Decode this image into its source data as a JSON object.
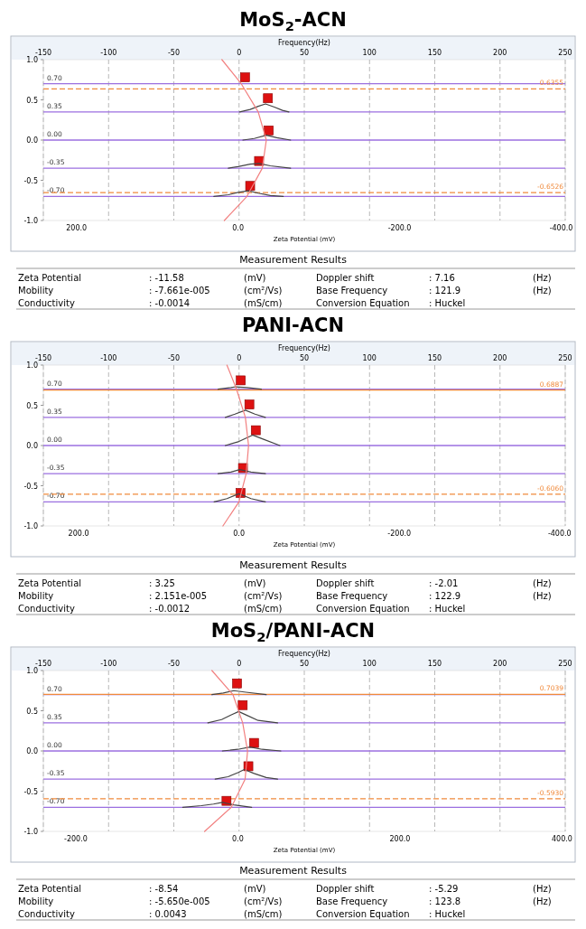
{
  "chart_data": [
    {
      "type": "scatter",
      "title": "MoS$_{2}$-ACN",
      "xlabel": "Zeta Potential (mV)",
      "x2label": "Frequency(Hz)",
      "xlim": [
        241,
        -405
      ],
      "xticks": [
        {
          "value": 200,
          "label": "200.0"
        },
        {
          "value": 0,
          "label": "0.0"
        },
        {
          "value": -200,
          "label": "-200.0"
        },
        {
          "value": -400,
          "label": "-400.0"
        }
      ],
      "x2lim": [
        -150,
        250
      ],
      "x2ticks": [
        -150,
        -100,
        -50,
        0,
        50,
        100,
        150,
        200,
        250
      ],
      "ylim": [
        -1,
        1
      ],
      "yticks": [
        {
          "value": 1,
          "label": "1.0"
        },
        {
          "value": 0.5,
          "label": "0.5"
        },
        {
          "value": 0,
          "label": "0.0"
        },
        {
          "value": -0.5,
          "label": "-0.5"
        },
        {
          "value": -1,
          "label": "-1.0"
        }
      ],
      "grid": "x",
      "series": [
        {
          "type": "line",
          "color": "#444444",
          "x": [
            -2,
            -15,
            -25,
            -34,
            -45,
            -55,
            -63
          ],
          "values": [
            0.35,
            0.38,
            0.42,
            0.45,
            0.41,
            0.37,
            0.35
          ]
        },
        {
          "type": "line",
          "color": "#444444",
          "x": [
            -6,
            -20,
            -35,
            -48,
            -65
          ],
          "values": [
            0,
            0.02,
            0.06,
            0.03,
            0
          ]
        },
        {
          "type": "line",
          "color": "#444444",
          "x": [
            12,
            0,
            -15,
            -26,
            -40,
            -65
          ],
          "values": [
            -0.35,
            -0.33,
            -0.3,
            -0.29,
            -0.32,
            -0.35
          ]
        },
        {
          "type": "line",
          "color": "#444444",
          "x": [
            30,
            12,
            0,
            -13,
            -25,
            -40,
            -56
          ],
          "values": [
            -0.7,
            -0.68,
            -0.65,
            -0.63,
            -0.66,
            -0.69,
            -0.7
          ]
        },
        {
          "type": "line",
          "color": "#f28080",
          "x": [
            20,
            -4,
            -25,
            -35,
            -30,
            -11,
            17
          ],
          "values": [
            1,
            0.7,
            0.35,
            0,
            -0.35,
            -0.7,
            -1
          ]
        },
        {
          "marker": "square",
          "color": "#dd1111",
          "x": [
            -8.6,
            -37,
            -38,
            -26,
            -15
          ],
          "values": [
            0.78,
            0.52,
            0.12,
            -0.26,
            -0.57
          ]
        }
      ],
      "ref_lines": [
        {
          "axis": "y",
          "value": 0.7,
          "label": "0.70",
          "color": "#9b6fe0"
        },
        {
          "axis": "y",
          "value": 0.35,
          "label": "0.35",
          "color": "#9b6fe0"
        },
        {
          "axis": "y",
          "value": 0,
          "label": "0.00",
          "color": "#9b6fe0"
        },
        {
          "axis": "y",
          "value": -0.35,
          "label": "-0.35",
          "color": "#9b6fe0"
        },
        {
          "axis": "y",
          "value": -0.7,
          "label": "-0.70",
          "color": "#9b6fe0"
        },
        {
          "axis": "y",
          "value": 0.6355,
          "label": "0.6355",
          "color": "#f08a3c",
          "line_style": "dashed"
        },
        {
          "axis": "y",
          "value": -0.6526,
          "label": "-0.6526",
          "color": "#f08a3c",
          "line_style": "dashed"
        }
      ],
      "annotations": [
        "Measurement Results",
        "Zeta Potential\t: -11.58\t(mV)",
        "Doppler shift\t: 7.16\t(Hz)",
        "Mobility\t: -7.661e-005\t(cm²/Vs)",
        "Base Frequency\t: 121.9\t(Hz)",
        "Conductivity\t: -0.0014\t(mS/cm)",
        "Conversion Equation\t: Huckel"
      ]
    },
    {
      "type": "scatter",
      "title": "PANI-ACN",
      "xlabel": "Zeta Potential (mV)",
      "x2label": "Frequency(Hz)",
      "xlim": [
        244,
        -407
      ],
      "xticks": [
        {
          "value": 200,
          "label": "200.0"
        },
        {
          "value": 0,
          "label": "0.0"
        },
        {
          "value": -200,
          "label": "-200.0"
        },
        {
          "value": -400,
          "label": "-400.0"
        }
      ],
      "x2lim": [
        -150,
        250
      ],
      "x2ticks": [
        -150,
        -100,
        -50,
        0,
        50,
        100,
        150,
        200,
        250
      ],
      "ylim": [
        -1,
        1
      ],
      "yticks": [
        {
          "value": 1,
          "label": "1.0"
        },
        {
          "value": 0.5,
          "label": "0.5"
        },
        {
          "value": 0,
          "label": "0.0"
        },
        {
          "value": -0.5,
          "label": "-0.5"
        },
        {
          "value": -1,
          "label": "-1.0"
        }
      ],
      "grid": "x",
      "series": [
        {
          "type": "line",
          "color": "#444444",
          "x": [
            26,
            10,
            4,
            -10,
            -28
          ],
          "values": [
            0.7,
            0.72,
            0.73,
            0.72,
            0.7
          ]
        },
        {
          "type": "line",
          "color": "#444444",
          "x": [
            17,
            5,
            -8,
            -20,
            -33
          ],
          "values": [
            0.35,
            0.39,
            0.44,
            0.39,
            0.35
          ]
        },
        {
          "type": "line",
          "color": "#444444",
          "x": [
            17,
            0,
            -17,
            -30,
            -51
          ],
          "values": [
            0,
            0.05,
            0.13,
            0.08,
            0
          ]
        },
        {
          "type": "line",
          "color": "#444444",
          "x": [
            26,
            10,
            -1,
            -15,
            -33
          ],
          "values": [
            -0.35,
            -0.33,
            -0.3,
            -0.33,
            -0.35
          ]
        },
        {
          "type": "line",
          "color": "#444444",
          "x": [
            31,
            15,
            0,
            -15,
            -33
          ],
          "values": [
            -0.7,
            -0.66,
            -0.6,
            -0.66,
            -0.7
          ]
        },
        {
          "type": "line",
          "color": "#f28080",
          "x": [
            15,
            3,
            -8,
            -12,
            -9,
            0,
            20
          ],
          "values": [
            1,
            0.7,
            0.35,
            0,
            -0.35,
            -0.7,
            -1
          ]
        },
        {
          "marker": "square",
          "color": "#dd1111",
          "x": [
            -2.3,
            -13,
            -21,
            -5,
            -2
          ],
          "values": [
            0.81,
            0.51,
            0.19,
            -0.28,
            -0.59
          ]
        }
      ],
      "ref_lines": [
        {
          "axis": "y",
          "value": 0.7,
          "label": "0.70",
          "color": "#9b6fe0"
        },
        {
          "axis": "y",
          "value": 0.35,
          "label": "0.35",
          "color": "#9b6fe0"
        },
        {
          "axis": "y",
          "value": 0,
          "label": "0.00",
          "color": "#9b6fe0"
        },
        {
          "axis": "y",
          "value": -0.35,
          "label": "-0.35",
          "color": "#9b6fe0"
        },
        {
          "axis": "y",
          "value": -0.7,
          "label": "-0.70",
          "color": "#9b6fe0"
        },
        {
          "axis": "y",
          "value": 0.6887,
          "label": "0.6887",
          "color": "#f08a3c",
          "line_style": "solid"
        },
        {
          "axis": "y",
          "value": -0.606,
          "label": "-0.6060",
          "color": "#f08a3c",
          "line_style": "dashed"
        }
      ],
      "annotations": [
        "Measurement Results",
        "Zeta Potential\t: 3.25\t(mV)",
        "Doppler shift\t: -2.01\t(Hz)",
        "Mobility\t: 2.151e-005\t(cm²/Vs)",
        "Base Frequency\t: 122.9\t(Hz)",
        "Conductivity\t: -0.0012\t(mS/cm)",
        "Conversion Equation\t: Huckel"
      ]
    },
    {
      "type": "scatter",
      "title": "MoS$_{2}$/PANI-ACN",
      "xlabel": "Zeta Potential (mV)",
      "x2label": "Frequency(Hz)",
      "xlim": [
        -240,
        404
      ],
      "xticks": [
        {
          "value": -200,
          "label": "-200.0"
        },
        {
          "value": 0,
          "label": "0.0"
        },
        {
          "value": 200,
          "label": "200.0"
        },
        {
          "value": 400,
          "label": "400.0"
        }
      ],
      "x2lim": [
        -150,
        250
      ],
      "x2ticks": [
        -150,
        -100,
        -50,
        0,
        50,
        100,
        150,
        200,
        250
      ],
      "ylim": [
        -1,
        1
      ],
      "yticks": [
        {
          "value": 1,
          "label": "1.0"
        },
        {
          "value": 0.5,
          "label": "0.5"
        },
        {
          "value": 0,
          "label": "0.0"
        },
        {
          "value": -0.5,
          "label": "-0.5"
        },
        {
          "value": -1,
          "label": "-1.0"
        }
      ],
      "grid": "x",
      "series": [
        {
          "type": "line",
          "color": "#444444",
          "x": [
            -32,
            -18,
            -5,
            10,
            35
          ],
          "values": [
            0.7,
            0.72,
            0.75,
            0.73,
            0.7
          ]
        },
        {
          "type": "line",
          "color": "#444444",
          "x": [
            -37,
            -20,
            -8,
            1,
            12,
            25,
            49
          ],
          "values": [
            0.35,
            0.39,
            0.45,
            0.49,
            0.44,
            0.38,
            0.35
          ]
        },
        {
          "type": "line",
          "color": "#444444",
          "x": [
            -19,
            0,
            15,
            30,
            53
          ],
          "values": [
            0,
            0.02,
            0.05,
            0.02,
            0
          ]
        },
        {
          "type": "line",
          "color": "#444444",
          "x": [
            -28,
            -12,
            0,
            8,
            20,
            35,
            49
          ],
          "values": [
            -0.35,
            -0.32,
            -0.27,
            -0.23,
            -0.28,
            -0.33,
            -0.35
          ]
        },
        {
          "type": "line",
          "color": "#444444",
          "x": [
            -68,
            -45,
            -30,
            -19,
            -5,
            17
          ],
          "values": [
            -0.7,
            -0.68,
            -0.66,
            -0.64,
            -0.67,
            -0.7
          ]
        },
        {
          "type": "line",
          "color": "#f28080",
          "x": [
            -32,
            -6,
            6,
            12,
            9,
            -8,
            -41
          ],
          "values": [
            1,
            0.7,
            0.35,
            0,
            -0.35,
            -0.7,
            -1
          ]
        },
        {
          "marker": "square",
          "color": "#dd1111",
          "x": [
            -1,
            6,
            20,
            13,
            -14
          ],
          "values": [
            0.84,
            0.57,
            0.1,
            -0.19,
            -0.62
          ]
        }
      ],
      "ref_lines": [
        {
          "axis": "y",
          "value": 0.7,
          "label": "0.70",
          "color": "#9b6fe0"
        },
        {
          "axis": "y",
          "value": 0.35,
          "label": "0.35",
          "color": "#9b6fe0"
        },
        {
          "axis": "y",
          "value": 0,
          "label": "0.00",
          "color": "#9b6fe0"
        },
        {
          "axis": "y",
          "value": -0.35,
          "label": "-0.35",
          "color": "#9b6fe0"
        },
        {
          "axis": "y",
          "value": -0.7,
          "label": "-0.70",
          "color": "#9b6fe0"
        },
        {
          "axis": "y",
          "value": 0.7039,
          "label": "0.7039",
          "color": "#f08a3c",
          "line_style": "solid"
        },
        {
          "axis": "y",
          "value": -0.593,
          "label": "-0.5930",
          "color": "#f08a3c",
          "line_style": "dashed"
        }
      ],
      "annotations": [
        "Measurement Results",
        "Zeta Potential\t: -8.54\t(mV)",
        "Doppler shift\t: -5.29\t(Hz)",
        "Mobility\t: -5.650e-005\t(cm²/Vs)",
        "Base Frequency\t: 123.8\t(Hz)",
        "Conductivity\t: 0.0043\t(mS/cm)",
        "Conversion Equation\t: Huckel"
      ]
    }
  ]
}
